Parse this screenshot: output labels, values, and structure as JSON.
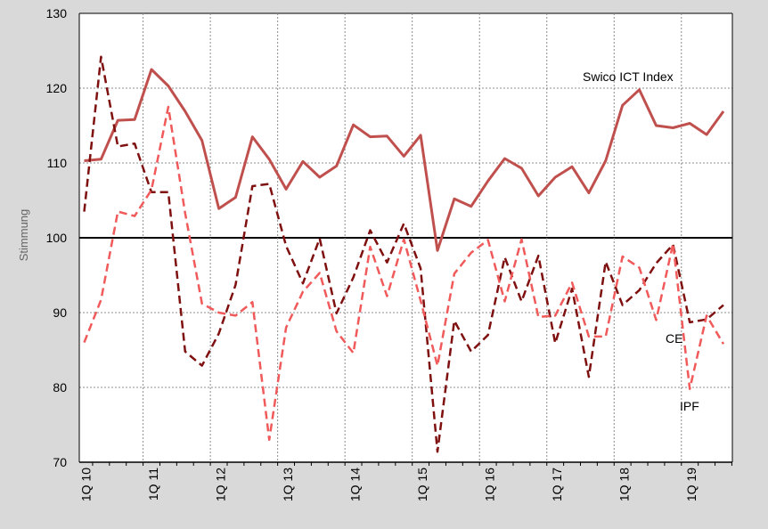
{
  "chart_data": {
    "type": "line",
    "ylabel": "Stimmung",
    "ylim": [
      70,
      130
    ],
    "yticks": [
      70,
      80,
      90,
      100,
      110,
      120,
      130
    ],
    "xtick_labels": [
      "1Q 10",
      "1Q 11",
      "1Q 12",
      "1Q 13",
      "1Q 14",
      "1Q 15",
      "1Q 16",
      "1Q 17",
      "1Q 18",
      "1Q 19"
    ],
    "quarters_per_label": 4,
    "num_points": 39,
    "reference_line": 100,
    "grid": true,
    "series": [
      {
        "name": "Swico ICT Index",
        "color": "#c0504d",
        "dash": "solid",
        "values": [
          110.3,
          110.5,
          115.7,
          115.8,
          122.5,
          120.3,
          116.9,
          113.0,
          103.9,
          105.4,
          113.5,
          110.5,
          106.5,
          110.2,
          108.1,
          109.6,
          115.1,
          113.5,
          113.6,
          110.9,
          113.7,
          98.3,
          105.2,
          104.2,
          107.6,
          110.6,
          109.3,
          105.6,
          108.1,
          109.5,
          106.0,
          110.3,
          117.7,
          119.8,
          115.0,
          114.7,
          115.3,
          113.8,
          116.9
        ]
      },
      {
        "name": "CE",
        "color": "#7f1010",
        "dash": "dashed",
        "values": [
          103.5,
          124.2,
          112.2,
          112.6,
          106.1,
          106.1,
          84.8,
          82.9,
          87.2,
          93.7,
          106.9,
          107.2,
          98.9,
          93.9,
          99.9,
          89.9,
          94.7,
          101.0,
          96.7,
          101.9,
          95.9,
          71.4,
          88.9,
          84.8,
          87.0,
          97.4,
          91.5,
          97.6,
          85.9,
          93.2,
          81.4,
          96.8,
          91.0,
          93.0,
          96.6,
          99.1,
          88.7,
          89.1,
          91.0
        ]
      },
      {
        "name": "IPF",
        "color": "#f05a5a",
        "dash": "dashed",
        "values": [
          86.0,
          91.7,
          103.5,
          102.9,
          106.4,
          117.5,
          103.3,
          91.2,
          90.0,
          89.6,
          91.4,
          73.0,
          88.0,
          92.8,
          95.3,
          87.5,
          84.6,
          98.8,
          92.2,
          99.8,
          91.6,
          82.9,
          95.2,
          98.0,
          99.7,
          91.5,
          99.8,
          89.4,
          89.6,
          94.0,
          86.8,
          86.8,
          97.5,
          96.0,
          89.0,
          99.2,
          79.8,
          89.6,
          85.8
        ]
      }
    ],
    "annotations": [
      "Swico ICT Index",
      "CE",
      "IPF"
    ]
  }
}
